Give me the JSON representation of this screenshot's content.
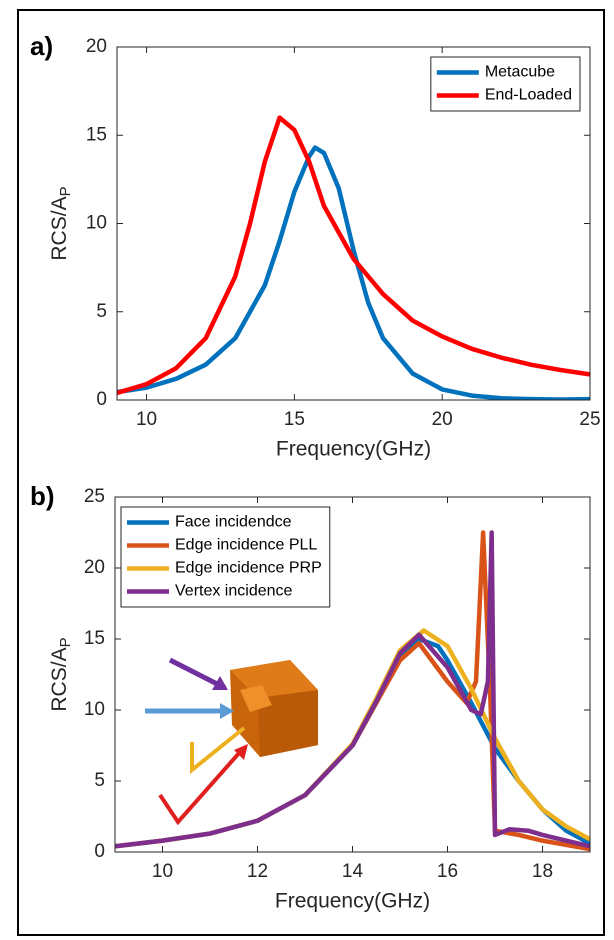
{
  "chart_data": [
    {
      "type": "line",
      "label": "a)",
      "xlabel": "Frequency(GHz)",
      "ylabel": "RCS/A",
      "ylabel_subscript": "P",
      "xlim": [
        9,
        25
      ],
      "ylim": [
        0,
        20
      ],
      "xticks": [
        10,
        15,
        20,
        25
      ],
      "yticks": [
        0,
        5,
        10,
        15,
        20
      ],
      "legend": "upper right",
      "series": [
        {
          "name": "Metacube",
          "color": "#0072bd",
          "x": [
            9,
            10,
            11,
            12,
            13,
            14,
            14.5,
            15,
            15.5,
            15.7,
            16,
            16.5,
            17,
            17.5,
            18,
            19,
            20,
            21,
            22,
            23,
            24,
            25
          ],
          "values": [
            0.45,
            0.7,
            1.2,
            2.0,
            3.5,
            6.5,
            9,
            11.8,
            13.8,
            14.3,
            14.0,
            12,
            8.5,
            5.5,
            3.5,
            1.5,
            0.6,
            0.25,
            0.1,
            0.05,
            0.03,
            0.05
          ]
        },
        {
          "name": "End-Loaded",
          "color": "#ff0000",
          "x": [
            9,
            10,
            11,
            12,
            13,
            13.5,
            14,
            14.5,
            15,
            15.5,
            16,
            17,
            18,
            19,
            20,
            21,
            22,
            23,
            24,
            25
          ],
          "values": [
            0.4,
            0.9,
            1.8,
            3.5,
            7,
            10,
            13.5,
            16,
            15.3,
            13.5,
            11,
            8,
            6,
            4.5,
            3.6,
            2.9,
            2.4,
            2.0,
            1.7,
            1.45
          ]
        }
      ]
    },
    {
      "type": "line",
      "label": "b)",
      "xlabel": "Frequency(GHz)",
      "ylabel": "RCS/A",
      "ylabel_subscript": "P",
      "xlim": [
        9,
        19
      ],
      "ylim": [
        0,
        25
      ],
      "xticks": [
        10,
        12,
        14,
        16,
        18
      ],
      "yticks": [
        0,
        5,
        10,
        15,
        20,
        25
      ],
      "legend": "upper left",
      "series": [
        {
          "name": "Face incidendce",
          "color": "#0072bd",
          "x": [
            9,
            10,
            11,
            12,
            13,
            14,
            14.5,
            15,
            15.4,
            15.8,
            16,
            16.5,
            17,
            17.5,
            18,
            18.5,
            19
          ],
          "values": [
            0.4,
            0.8,
            1.3,
            2.2,
            4,
            7.5,
            10.5,
            13.7,
            15.0,
            14.5,
            13.5,
            10.5,
            7.3,
            5,
            3,
            1.5,
            0.6
          ]
        },
        {
          "name": "Edge incidence PLL",
          "color": "#d95319",
          "x": [
            9,
            10,
            11,
            12,
            13,
            14,
            14.5,
            15,
            15.4,
            16,
            16.4,
            16.6,
            16.75,
            16.9,
            17,
            17.5,
            18,
            19
          ],
          "values": [
            0.4,
            0.8,
            1.3,
            2.2,
            4,
            7.5,
            10.5,
            13.5,
            14.7,
            12,
            10.5,
            12,
            22.5,
            11,
            1.5,
            1.2,
            0.8,
            0.2
          ]
        },
        {
          "name": "Edge incidence PRP",
          "color": "#edb120",
          "x": [
            9,
            10,
            11,
            12,
            13,
            14,
            14.5,
            15,
            15.5,
            16,
            16.5,
            17,
            17.5,
            18,
            18.5,
            19
          ],
          "values": [
            0.4,
            0.8,
            1.3,
            2.2,
            4,
            7.6,
            10.8,
            14.2,
            15.6,
            14.5,
            11.5,
            8,
            5,
            3,
            1.8,
            0.9
          ]
        },
        {
          "name": "Vertex incidence",
          "color": "#7e2f8e",
          "x": [
            9,
            10,
            11,
            12,
            13,
            14,
            14.5,
            15,
            15.4,
            16,
            16.5,
            16.7,
            16.85,
            16.93,
            17.0,
            17.3,
            17.7,
            18,
            19
          ],
          "values": [
            0.4,
            0.8,
            1.3,
            2.2,
            4,
            7.5,
            10.6,
            14,
            15.3,
            13,
            10,
            9.7,
            12,
            22.5,
            1.2,
            1.6,
            1.5,
            1.2,
            0.4
          ]
        }
      ]
    }
  ]
}
